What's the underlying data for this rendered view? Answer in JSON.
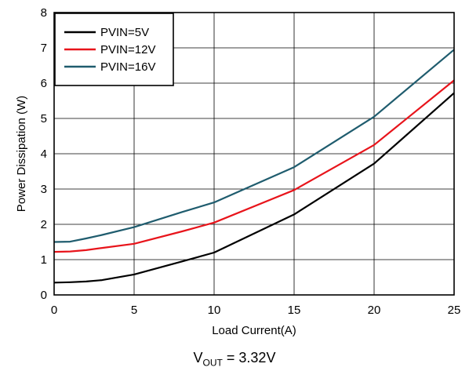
{
  "chart_data": {
    "type": "line",
    "title": "",
    "xlabel": "Load Current(A)",
    "ylabel": "Power Dissipation (W)",
    "xlim": [
      0,
      25
    ],
    "ylim": [
      0,
      8
    ],
    "xticks": [
      0,
      5,
      10,
      15,
      20,
      25
    ],
    "yticks": [
      0,
      1,
      2,
      3,
      4,
      5,
      6,
      7,
      8
    ],
    "grid": true,
    "legend_position": "top-left",
    "series": [
      {
        "name": "PVIN=5V",
        "color": "#000000",
        "x": [
          0,
          1,
          2,
          3,
          5,
          8,
          10,
          15,
          20,
          25
        ],
        "y": [
          0.35,
          0.36,
          0.38,
          0.42,
          0.58,
          0.95,
          1.2,
          2.28,
          3.72,
          5.72
        ]
      },
      {
        "name": "PVIN=12V",
        "color": "#e8141b",
        "x": [
          0,
          1,
          2,
          3,
          5,
          8,
          10,
          15,
          20,
          25
        ],
        "y": [
          1.22,
          1.23,
          1.27,
          1.33,
          1.45,
          1.8,
          2.05,
          2.97,
          4.25,
          6.08
        ]
      },
      {
        "name": "PVIN=16V",
        "color": "#1f5c6e",
        "x": [
          0,
          1,
          2,
          3,
          5,
          8,
          10,
          15,
          20,
          25
        ],
        "y": [
          1.5,
          1.51,
          1.6,
          1.7,
          1.92,
          2.35,
          2.62,
          3.62,
          5.05,
          6.95
        ]
      }
    ]
  },
  "caption": {
    "main": "V",
    "subscript": "OUT",
    "rest": " = 3.32V"
  }
}
